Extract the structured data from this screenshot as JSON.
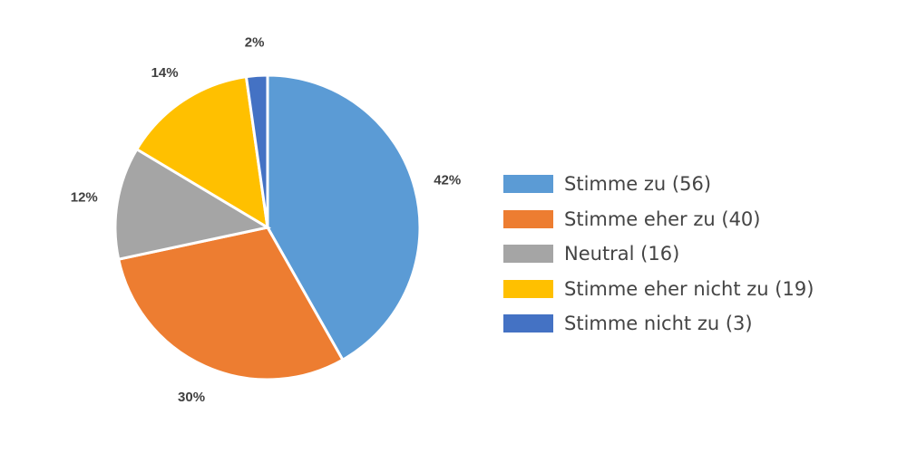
{
  "chart_data": {
    "type": "pie",
    "start_angle": "top, clockwise",
    "slices": [
      {
        "label": "Stimme zu (56)",
        "value": 56,
        "percent_label": "42%",
        "color": "#5B9BD5"
      },
      {
        "label": "Stimme eher zu (40)",
        "value": 40,
        "percent_label": "30%",
        "color": "#ED7D31"
      },
      {
        "label": "Neutral (16)",
        "value": 16,
        "percent_label": "12%",
        "color": "#A5A5A5"
      },
      {
        "label": "Stimme eher nicht zu (19)",
        "value": 19,
        "percent_label": "14%",
        "color": "#FFC000"
      },
      {
        "label": "Stimme nicht zu (3)",
        "value": 3,
        "percent_label": "2%",
        "color": "#4472C4"
      }
    ],
    "legend_position": "right"
  }
}
